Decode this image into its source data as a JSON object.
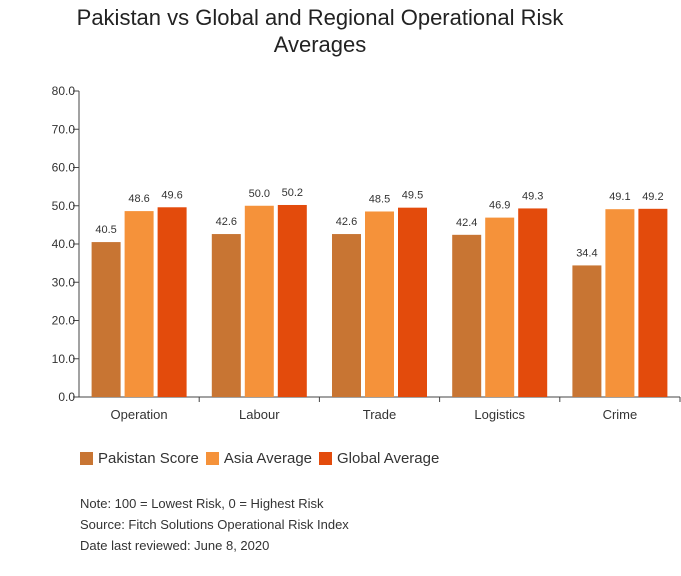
{
  "chart_data": {
    "type": "bar",
    "title_lines": [
      "Pakistan vs Global and Regional Operational Risk",
      "Averages"
    ],
    "categories": [
      "Operation",
      "Labour",
      "Trade",
      "Logistics",
      "Crime"
    ],
    "series": [
      {
        "name": "Pakistan Score",
        "color": "#c87533",
        "values": [
          40.5,
          42.6,
          42.6,
          42.4,
          34.4
        ]
      },
      {
        "name": "Asia Average",
        "color": "#f5923a",
        "values": [
          48.6,
          50.0,
          48.5,
          46.9,
          49.1
        ]
      },
      {
        "name": "Global Average",
        "color": "#e34b0c",
        "values": [
          49.6,
          50.2,
          49.5,
          49.3,
          49.2
        ]
      }
    ],
    "ylim": [
      0,
      80
    ],
    "yticks": [
      "0.0",
      "10.0",
      "20.0",
      "30.0",
      "40.0",
      "50.0",
      "60.0",
      "70.0",
      "80.0"
    ],
    "grid": false,
    "legend_position": "bottom-left"
  },
  "notes": [
    "Note: 100 = Lowest Risk, 0 = Highest Risk",
    "Source: Fitch Solutions Operational Risk Index",
    "Date last reviewed: June 8, 2020"
  ]
}
